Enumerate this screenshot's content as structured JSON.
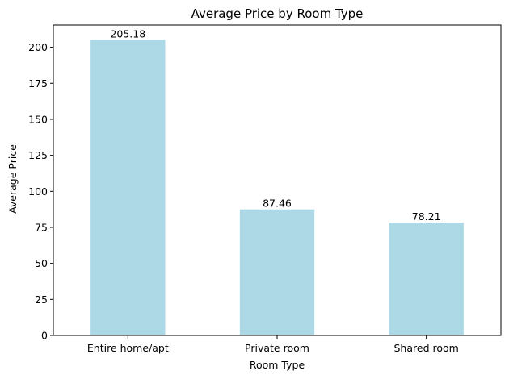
{
  "chart_data": {
    "type": "bar",
    "title": "Average Price by Room Type",
    "xlabel": "Room Type",
    "ylabel": "Average Price",
    "categories": [
      "Entire home/apt",
      "Private room",
      "Shared room"
    ],
    "values": [
      205.18,
      87.46,
      78.21
    ],
    "value_labels": [
      "205.18",
      "87.46",
      "78.21"
    ],
    "ylim": [
      0,
      215.44
    ],
    "yticks": [
      0,
      25,
      50,
      75,
      100,
      125,
      150,
      175,
      200
    ],
    "bar_color": "#add8e6",
    "grid": false,
    "legend": "none"
  }
}
